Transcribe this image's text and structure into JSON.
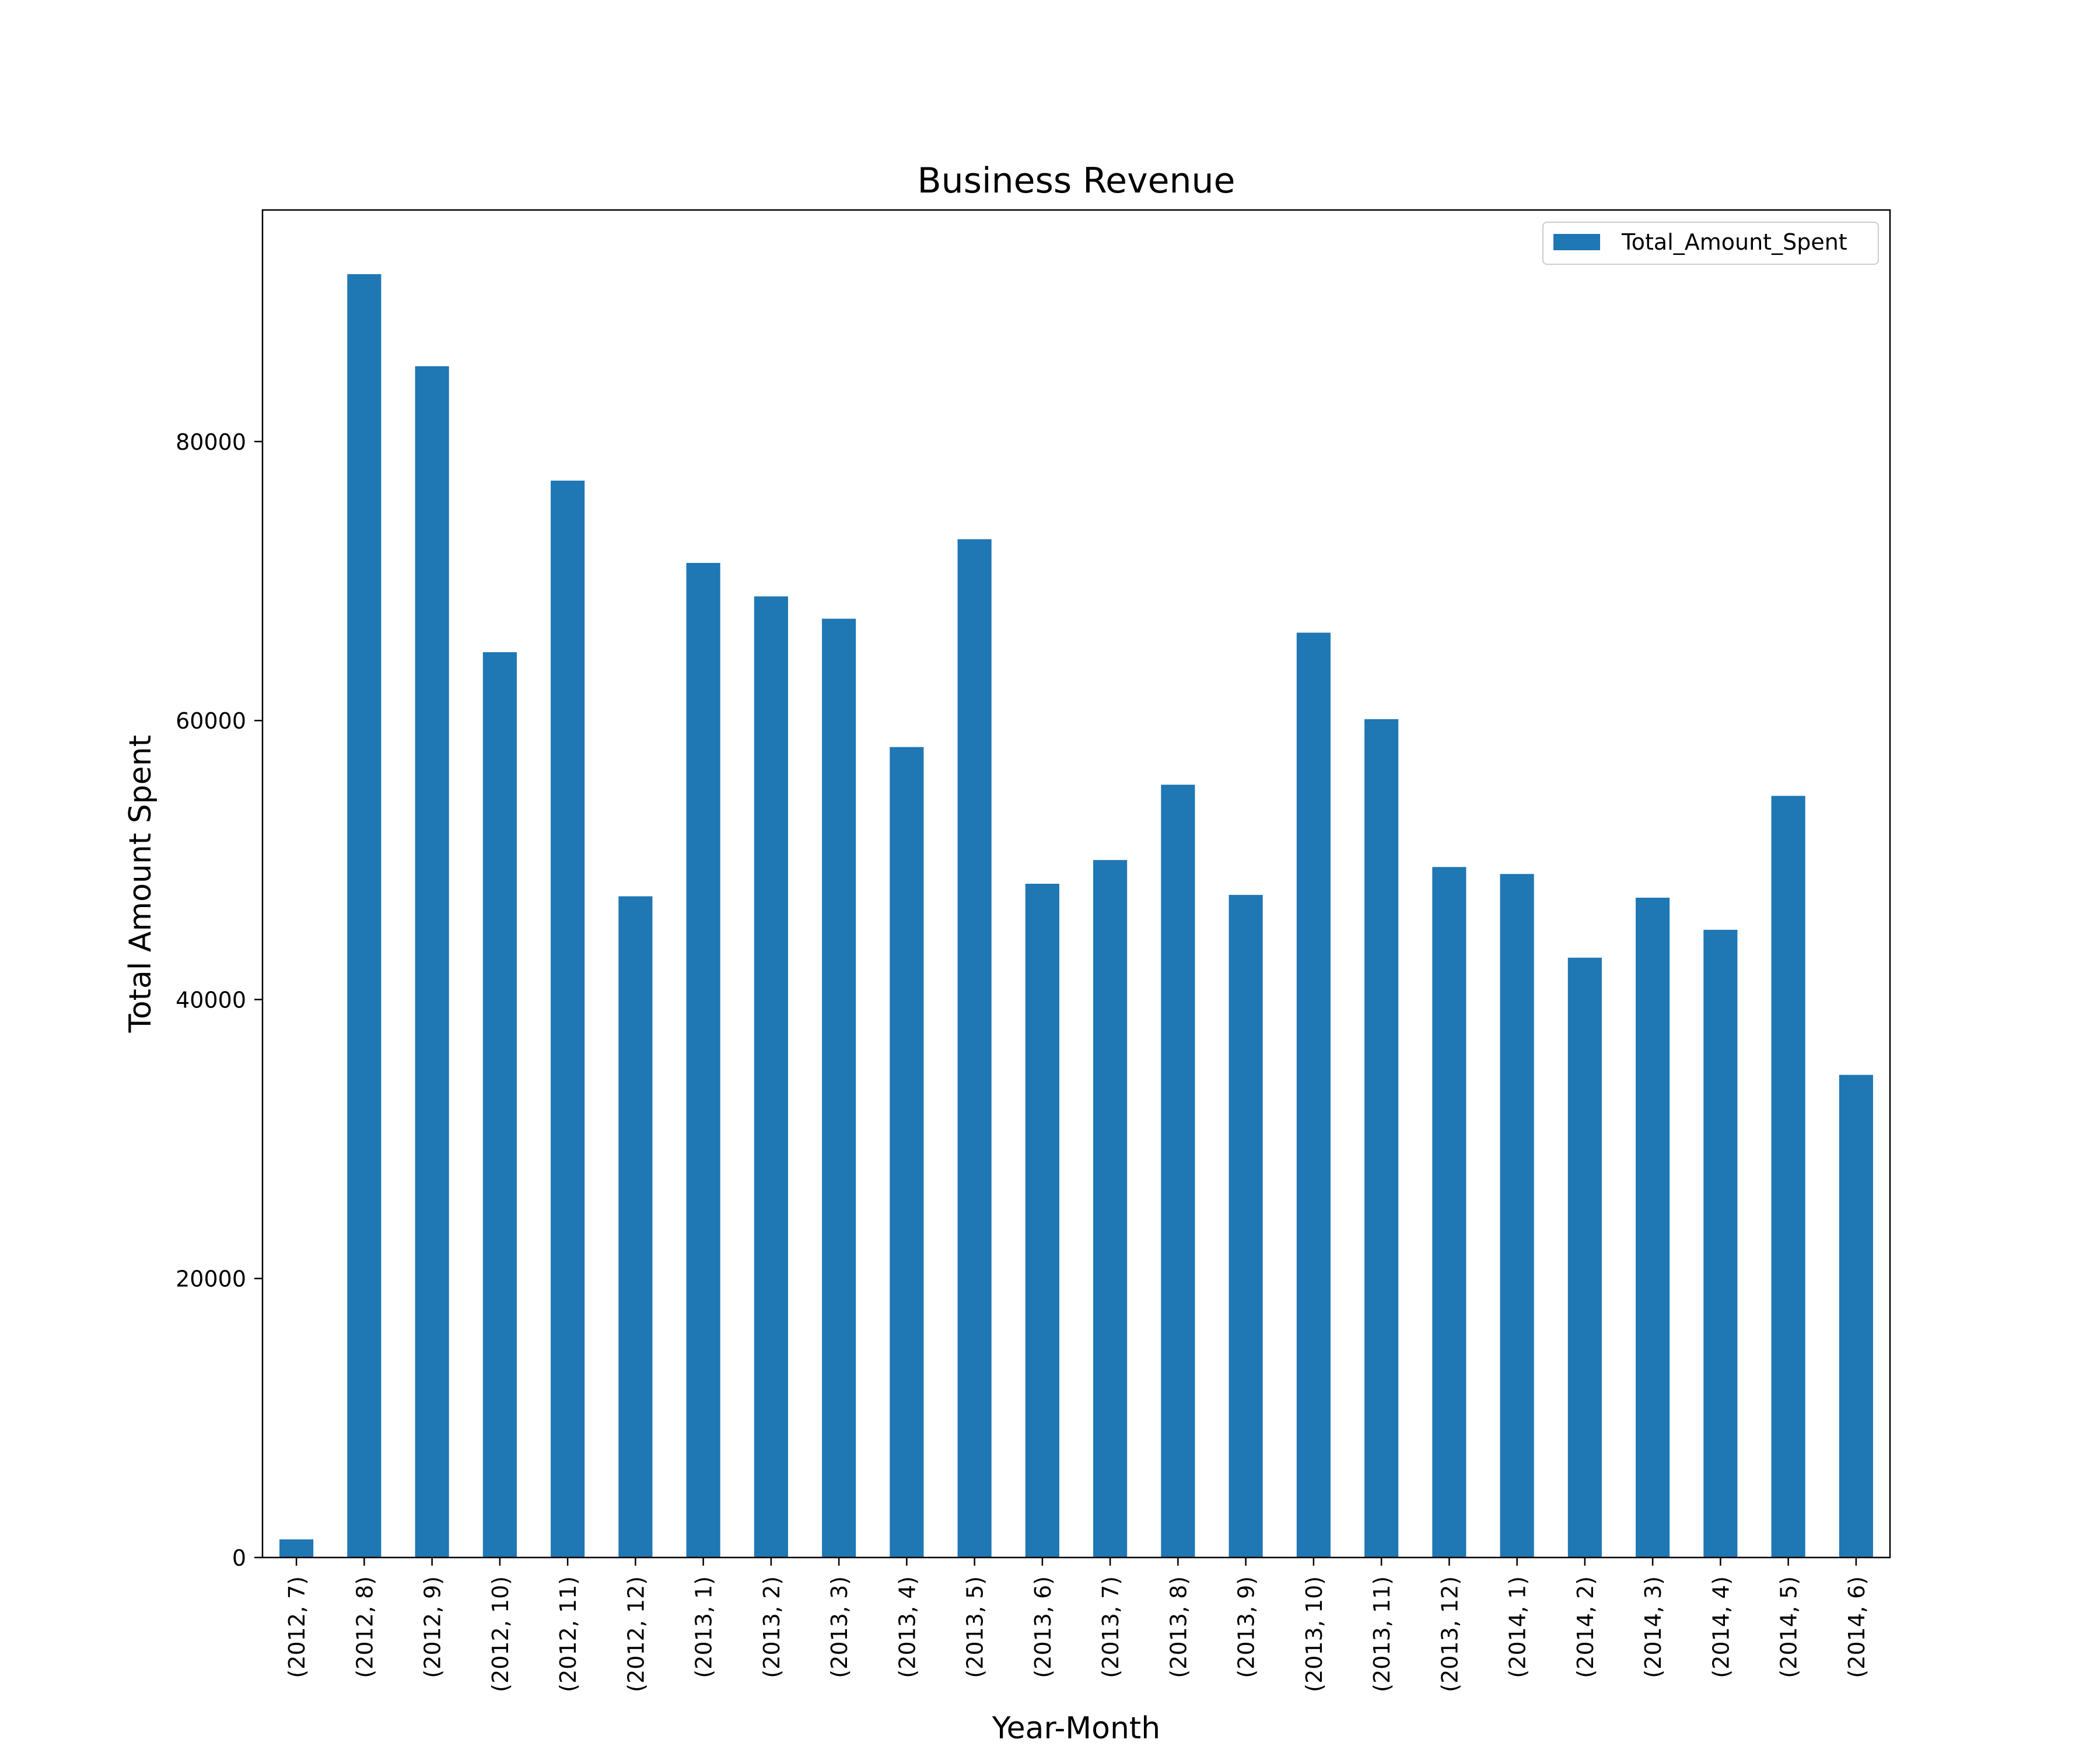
{
  "chart_data": {
    "type": "bar",
    "title": "Business Revenue",
    "xlabel": "Year-Month",
    "ylabel": "Total Amount Spent",
    "categories": [
      "(2012, 7)",
      "(2012, 8)",
      "(2012, 9)",
      "(2012, 10)",
      "(2012, 11)",
      "(2012, 12)",
      "(2013, 1)",
      "(2013, 2)",
      "(2013, 3)",
      "(2013, 4)",
      "(2013, 5)",
      "(2013, 6)",
      "(2013, 7)",
      "(2013, 8)",
      "(2013, 9)",
      "(2013, 10)",
      "(2013, 11)",
      "(2013, 12)",
      "(2014, 1)",
      "(2014, 2)",
      "(2014, 3)",
      "(2014, 4)",
      "(2014, 5)",
      "(2014, 6)"
    ],
    "series": [
      {
        "name": "Total_Amount_Spent",
        "color": "#1f77b4",
        "values": [
          1300,
          92000,
          85400,
          64900,
          77200,
          47400,
          71300,
          68900,
          67300,
          58100,
          73000,
          48300,
          50000,
          55400,
          47500,
          66300,
          60100,
          49500,
          49000,
          43000,
          47300,
          45000,
          54600,
          34600
        ]
      }
    ],
    "yticks": [
      0,
      20000,
      40000,
      60000,
      80000
    ],
    "ylim": [
      0,
      96600
    ],
    "legend": "top-right",
    "grid": false
  }
}
